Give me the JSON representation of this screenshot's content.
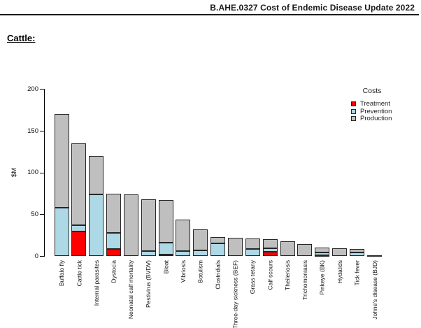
{
  "header": {
    "title": "B.AHE.0327 Cost of Endemic Disease Update 2022"
  },
  "doc": {
    "section_title": "Cattle:"
  },
  "chart_data": {
    "type": "bar",
    "stacked": true,
    "title": "",
    "xlabel": "",
    "ylabel": "$M",
    "ylim": [
      0,
      200
    ],
    "yticks": [
      0,
      50,
      100,
      150,
      200
    ],
    "grid": false,
    "legend_title": "Costs",
    "legend_position": "top-right",
    "bar_border": "#262626",
    "categories": [
      "Buffalo fly",
      "Cattle tick",
      "Internal parasites",
      "Dystocia",
      "Neonatal calf mortality",
      "Pestivirus (BVDV)",
      "Bloat",
      "Vibriosis",
      "Botulism",
      "Clostridials",
      "Three-day sickness (BEF)",
      "Grass tetany",
      "Calf scours",
      "Theileriosis",
      "Trichomoniasis",
      "Pinkeye (BK)",
      "Hydatids",
      "Tick fever",
      "Johne's disease (BJD)"
    ],
    "series": [
      {
        "name": "Treatment",
        "color": "#ff0000",
        "values": [
          0,
          29,
          0,
          8,
          0,
          0,
          2,
          0,
          0,
          0,
          0,
          0,
          5,
          0,
          0,
          1,
          0,
          0,
          0
        ]
      },
      {
        "name": "Prevention",
        "color": "#add8e6",
        "values": [
          58,
          8,
          74,
          20,
          0,
          6,
          14,
          6,
          7,
          15,
          0,
          8,
          4,
          0,
          0,
          3,
          0,
          4,
          0
        ]
      },
      {
        "name": "Production",
        "color": "#bfbfbf",
        "values": [
          112,
          98,
          46,
          47,
          74,
          62,
          51,
          38,
          25,
          8,
          22,
          13,
          11,
          18,
          14,
          6,
          9,
          4,
          1
        ]
      }
    ],
    "totals": [
      170,
      135,
      120,
      75,
      74,
      68,
      67,
      44,
      32,
      23,
      22,
      21,
      20,
      18,
      14,
      10,
      9,
      8,
      1
    ]
  }
}
